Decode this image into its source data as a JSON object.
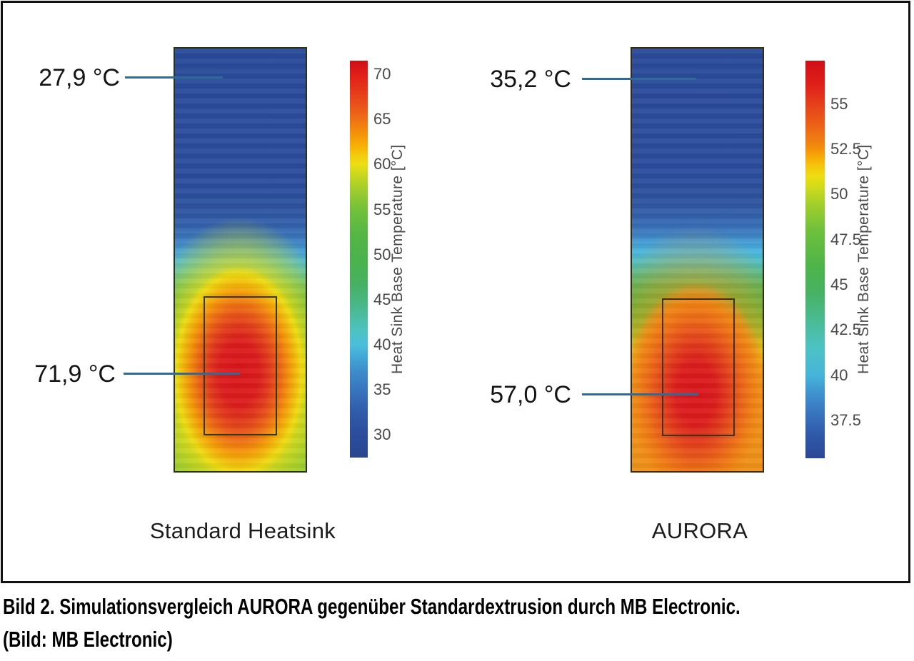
{
  "figure": {
    "panels": [
      {
        "id": "standard",
        "title": "Standard Heatsink",
        "annotations": [
          {
            "label": "27,9 °C",
            "target": "heatsink-top"
          },
          {
            "label": "71,9 °C",
            "target": "hotspot-center"
          }
        ],
        "colorbar": {
          "label": "Heat Sink Base Temperature [°C]",
          "ticks": [
            "70",
            "65",
            "60",
            "55",
            "50",
            "45",
            "40",
            "35",
            "30"
          ],
          "scale_min": 27.5,
          "scale_max": 71.5
        }
      },
      {
        "id": "aurora",
        "title": "AURORA",
        "annotations": [
          {
            "label": "35,2 °C",
            "target": "heatsink-top"
          },
          {
            "label": "57,0 °C",
            "target": "hotspot-center"
          }
        ],
        "colorbar": {
          "label": "Heat Sink Base Temperature [°C]",
          "ticks": [
            "55",
            "52.5",
            "50",
            "47.5",
            "45",
            "42.5",
            "40",
            "37.5"
          ],
          "scale_min": 35.4,
          "scale_max": 57.4
        }
      }
    ]
  },
  "caption": {
    "line1": "Bild 2. Simulationsvergleich AURORA gegenüber Standardextrusion durch MB Electronic.",
    "line2": "(Bild: MB Electronic)"
  },
  "chart_data": [
    {
      "type": "heatmap",
      "title": "Standard Heatsink",
      "colorbar_label": "Heat Sink Base Temperature [°C]",
      "colorbar_ticks": [
        70,
        65,
        60,
        55,
        50,
        45,
        40,
        35,
        30
      ],
      "colorbar_range": [
        27.5,
        71.5
      ],
      "min_temp_c": 27.9,
      "max_temp_c": 71.9,
      "annotations": [
        {
          "text": "27,9 °C",
          "points_to": "top of heatsink (coolest region)"
        },
        {
          "text": "71,9 °C",
          "points_to": "hotspot center inside outlined heat-source rectangle"
        }
      ],
      "description": "Vertical heatsink plate: deep blue top ~27.9 °C grading through cyan and green to a red elliptical hotspot (~71.9 °C) inside an outlined rectangle near the bottom; bottom returns to green/yellow-green."
    },
    {
      "type": "heatmap",
      "title": "AURORA",
      "colorbar_label": "Heat Sink Base Temperature [°C]",
      "colorbar_ticks": [
        55,
        52.5,
        50,
        47.5,
        45,
        42.5,
        40,
        37.5
      ],
      "colorbar_range": [
        35.4,
        57.4
      ],
      "min_temp_c": 35.2,
      "max_temp_c": 57.0,
      "annotations": [
        {
          "text": "35,2 °C",
          "points_to": "top of heatsink (coolest region)"
        },
        {
          "text": "57,0 °C",
          "points_to": "hotspot center inside outlined heat-source rectangle"
        }
      ],
      "description": "Vertical heatsink plate: deep blue top ~35.2 °C grading through cyan, green and a yellow band to a red hotspot (~57.0 °C) inside an outlined rectangle; bottom remains orange."
    }
  ]
}
